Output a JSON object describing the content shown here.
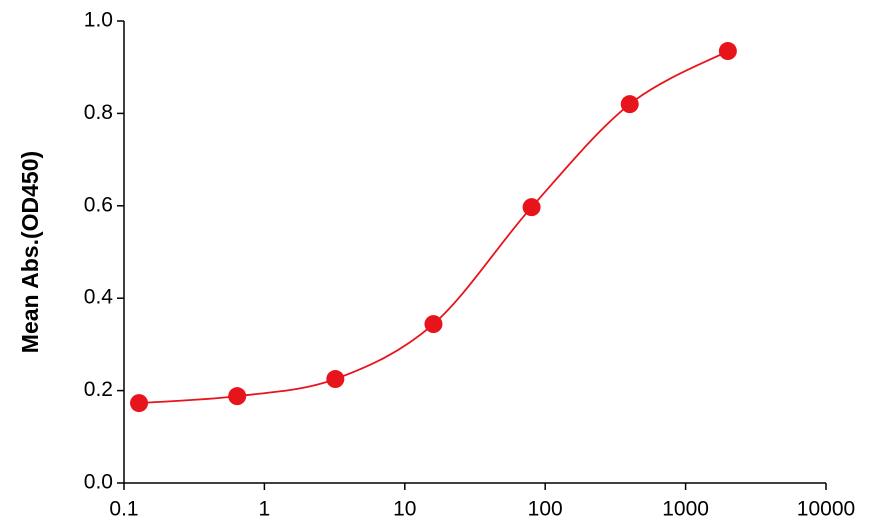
{
  "chart_data": {
    "type": "scatter",
    "y_label": "Mean Abs.(OD450)",
    "x_scale": "log",
    "xlim": [
      0.1,
      10000
    ],
    "xticks": [
      0.1,
      1,
      10,
      100,
      1000,
      10000
    ],
    "ylim": [
      0,
      1
    ],
    "yticks": [
      {
        "value": 0,
        "label": "0.0"
      },
      0.2,
      0.4,
      0.6,
      0.8,
      {
        "value": 1,
        "label": "1.0"
      }
    ],
    "series": [
      {
        "color": "#e8141c",
        "x": [
          0.128,
          0.64,
          3.2,
          16,
          80,
          400,
          2000
        ],
        "values": [
          0.173,
          0.188,
          0.225,
          0.344,
          0.597,
          0.82,
          0.935
        ]
      }
    ]
  }
}
